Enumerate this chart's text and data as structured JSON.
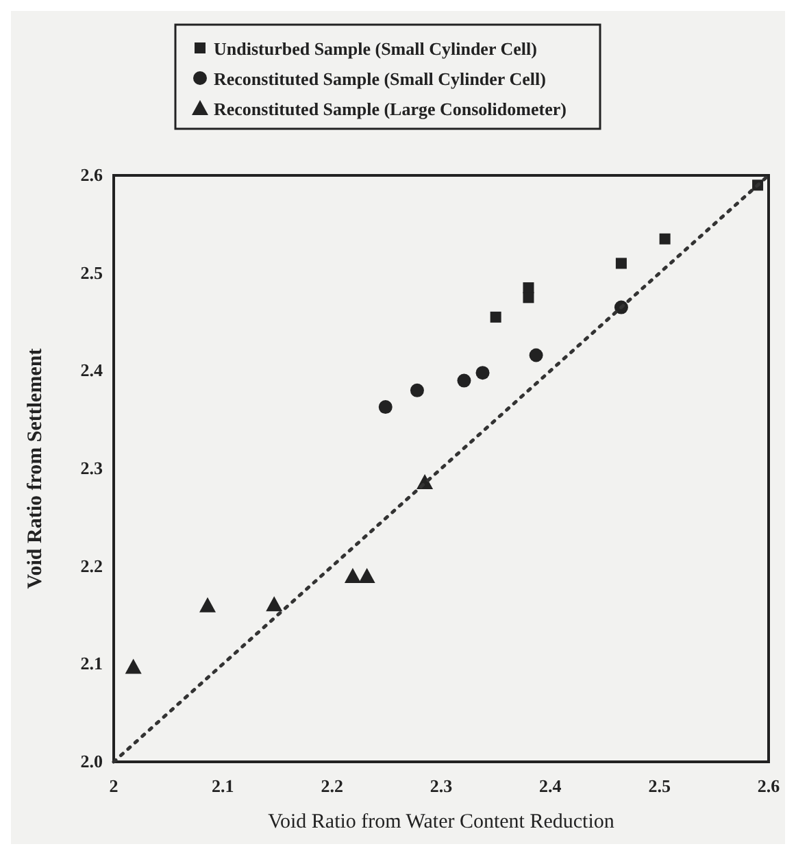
{
  "chart_data": {
    "type": "scatter",
    "xlabel": "Void Ratio from Water Content Reduction",
    "ylabel": "Void Ratio from Settlement",
    "xlim": [
      2,
      2.6
    ],
    "xticks": [
      2,
      2.1,
      2.2,
      2.3,
      2.4,
      2.5,
      2.6
    ],
    "ylim": [
      2,
      2.6
    ],
    "yticks": [
      {
        "value": 2,
        "label": "2.0"
      },
      2.1,
      2.2,
      2.3,
      2.4,
      2.5,
      2.6
    ],
    "legend": "top",
    "grid": false,
    "series": [
      {
        "name": "Undisturbed Sample (Small Cylinder Cell)",
        "color": "#222222",
        "marker": "square",
        "x": [
          2.35,
          2.38,
          2.38,
          2.465,
          2.505,
          2.59
        ],
        "values": [
          2.455,
          2.485,
          2.475,
          2.51,
          2.535,
          2.59
        ]
      },
      {
        "name": "Reconstituted Sample (Small Cylinder Cell)",
        "color": "#222222",
        "marker": "circle",
        "x": [
          2.249,
          2.278,
          2.321,
          2.338,
          2.387,
          2.465
        ],
        "values": [
          2.363,
          2.38,
          2.39,
          2.398,
          2.416,
          2.465
        ]
      },
      {
        "name": "Reconstituted Sample (Large Consolidometer)",
        "color": "#222222",
        "marker": "triangle",
        "x": [
          2.018,
          2.086,
          2.147,
          2.219,
          2.232,
          2.285
        ],
        "values": [
          2.097,
          2.16,
          2.161,
          2.19,
          2.19,
          2.286
        ]
      },
      {
        "type": "line",
        "color": "#333333",
        "line_style": "dotted",
        "marker": "none",
        "x": [
          2,
          2.6
        ],
        "values": [
          2,
          2.6
        ]
      }
    ]
  }
}
